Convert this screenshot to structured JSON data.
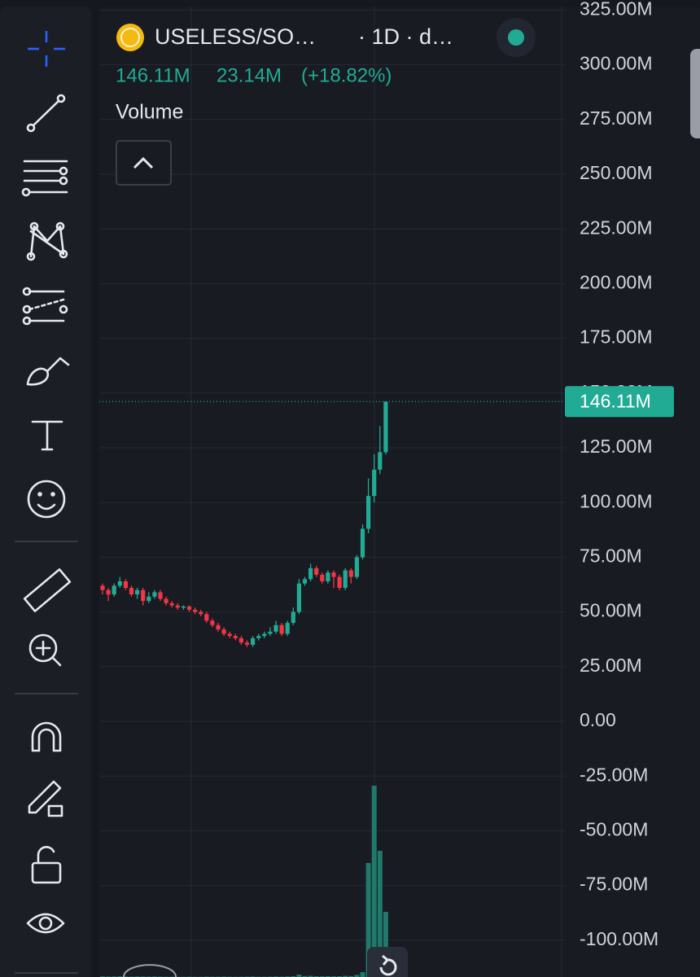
{
  "header": {
    "symbol": "USELESS/SO…",
    "interval": "· 1D · d…",
    "price": "146.11M",
    "change": "23.14M",
    "change_pct": "(+18.82%)",
    "indicator": "Volume"
  },
  "chart_data": {
    "type": "candlestick",
    "open": [
      62,
      60,
      58,
      62,
      64,
      61,
      58,
      60,
      55,
      57,
      59,
      56,
      54,
      53,
      52,
      52.5,
      51,
      50,
      49,
      46,
      44,
      42,
      40,
      39,
      38,
      36,
      35,
      38,
      39,
      40,
      41,
      44,
      40,
      45,
      50,
      63,
      65,
      70,
      67,
      64,
      68,
      66,
      61,
      69,
      66,
      75,
      88,
      103,
      115,
      123
    ],
    "high": [
      63,
      61,
      63,
      66,
      65,
      62,
      61,
      61,
      59,
      60,
      60,
      57,
      55,
      54,
      53,
      53,
      52,
      51,
      50,
      47,
      45,
      43,
      41,
      40,
      39,
      37,
      39,
      40,
      41,
      43,
      46,
      45,
      46,
      52,
      65,
      66,
      72,
      71,
      68,
      69,
      69,
      67,
      70,
      70,
      76,
      90,
      111,
      122,
      135,
      146.11
    ],
    "low": [
      58,
      55,
      57,
      61,
      60,
      57,
      56,
      53,
      54,
      56,
      55,
      53,
      52,
      51,
      51,
      50,
      49,
      48,
      45,
      43,
      41,
      39,
      38,
      37,
      35,
      34,
      34,
      37,
      38,
      39,
      40,
      39,
      39,
      44,
      49,
      62,
      64,
      66,
      63,
      63,
      61,
      60,
      60,
      63,
      65,
      74,
      86,
      100,
      113,
      122
    ],
    "close": [
      60,
      58,
      62,
      64,
      61,
      58,
      60,
      55,
      57,
      59,
      56,
      54,
      53,
      52,
      52.5,
      51,
      50,
      49,
      46,
      44,
      42,
      40,
      39,
      38,
      36,
      35,
      38,
      39,
      40,
      41,
      44,
      40,
      45,
      50,
      63,
      65,
      70,
      67,
      64,
      68,
      66,
      61,
      69,
      66,
      75,
      88,
      103,
      115,
      123,
      146.11
    ],
    "volume": [
      8,
      6,
      7,
      9,
      6,
      5,
      7,
      6,
      5,
      6,
      5,
      4,
      4,
      3,
      3,
      4,
      3,
      3,
      5,
      4,
      4,
      5,
      4,
      3,
      4,
      5,
      6,
      4,
      4,
      5,
      7,
      5,
      8,
      10,
      30,
      12,
      15,
      10,
      9,
      11,
      9,
      10,
      14,
      12,
      25,
      60,
      1400,
      2350,
      1550,
      800
    ],
    "up_color": "#22ab94",
    "down_color": "#f23645",
    "volume_color": "#1f7a6b",
    "ylim": [
      -116.8,
      329.6
    ],
    "yticks": [
      {
        "value": 325,
        "label": "325.00M"
      },
      {
        "value": 300,
        "label": "300.00M"
      },
      {
        "value": 275,
        "label": "275.00M"
      },
      {
        "value": 250,
        "label": "250.00M"
      },
      {
        "value": 225,
        "label": "225.00M"
      },
      {
        "value": 200,
        "label": "200.00M"
      },
      {
        "value": 175,
        "label": "175.00M"
      },
      {
        "value": 150,
        "label": "150.00M"
      },
      {
        "value": 125,
        "label": "125.00M"
      },
      {
        "value": 100,
        "label": "100.00M"
      },
      {
        "value": 75,
        "label": "75.00M"
      },
      {
        "value": 50,
        "label": "50.00M"
      },
      {
        "value": 25,
        "label": "25.00M"
      },
      {
        "value": 0,
        "label": "0.00"
      },
      {
        "value": -25,
        "label": "-25.00M"
      },
      {
        "value": -50,
        "label": "-50.00M"
      },
      {
        "value": -75,
        "label": "-75.00M"
      },
      {
        "value": -100,
        "label": "-100.00M"
      }
    ],
    "grid": true,
    "last_price": {
      "value": 146.11,
      "label": "146.11M"
    }
  }
}
